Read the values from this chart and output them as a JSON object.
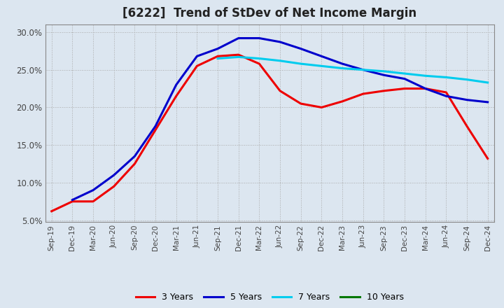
{
  "title": "[6222]  Trend of StDev of Net Income Margin",
  "ylim": [
    0.048,
    0.31
  ],
  "yticks": [
    0.05,
    0.1,
    0.15,
    0.2,
    0.25,
    0.3
  ],
  "ytick_labels": [
    "5.0%",
    "10.0%",
    "15.0%",
    "20.0%",
    "25.0%",
    "30.0%"
  ],
  "background_color": "#dce6f0",
  "plot_bg_color": "#dce6f0",
  "grid_color": "#aaaaaa",
  "title_color": "#222222",
  "line_colors": {
    "3y": "#ee0000",
    "5y": "#0000cc",
    "7y": "#00ccee",
    "10y": "#007700"
  },
  "legend_labels": [
    "3 Years",
    "5 Years",
    "7 Years",
    "10 Years"
  ],
  "x_labels": [
    "Sep-19",
    "Dec-19",
    "Mar-20",
    "Jun-20",
    "Sep-20",
    "Dec-20",
    "Mar-21",
    "Jun-21",
    "Sep-21",
    "Dec-21",
    "Mar-22",
    "Jun-22",
    "Sep-22",
    "Dec-22",
    "Mar-23",
    "Jun-23",
    "Sep-23",
    "Dec-23",
    "Mar-24",
    "Jun-24",
    "Sep-24",
    "Dec-24"
  ],
  "series_3y": [
    0.062,
    0.075,
    0.075,
    0.095,
    0.125,
    0.17,
    0.215,
    0.255,
    0.268,
    0.27,
    0.258,
    0.222,
    0.205,
    0.2,
    0.208,
    0.218,
    0.222,
    0.225,
    0.225,
    0.22,
    0.175,
    0.132
  ],
  "series_5y": [
    null,
    0.077,
    0.09,
    0.11,
    0.135,
    0.175,
    0.23,
    0.268,
    0.278,
    0.292,
    0.292,
    0.287,
    0.278,
    0.268,
    0.258,
    0.25,
    0.243,
    0.238,
    0.225,
    0.215,
    0.21,
    0.207
  ],
  "series_7y": [
    null,
    null,
    null,
    null,
    null,
    null,
    null,
    null,
    0.265,
    0.267,
    0.265,
    0.262,
    0.258,
    0.255,
    0.252,
    0.25,
    0.248,
    0.245,
    0.242,
    0.24,
    0.237,
    0.233
  ],
  "series_10y": [
    null,
    null,
    null,
    null,
    null,
    null,
    null,
    null,
    null,
    null,
    null,
    null,
    null,
    null,
    null,
    null,
    null,
    null,
    null,
    null,
    null,
    null
  ]
}
